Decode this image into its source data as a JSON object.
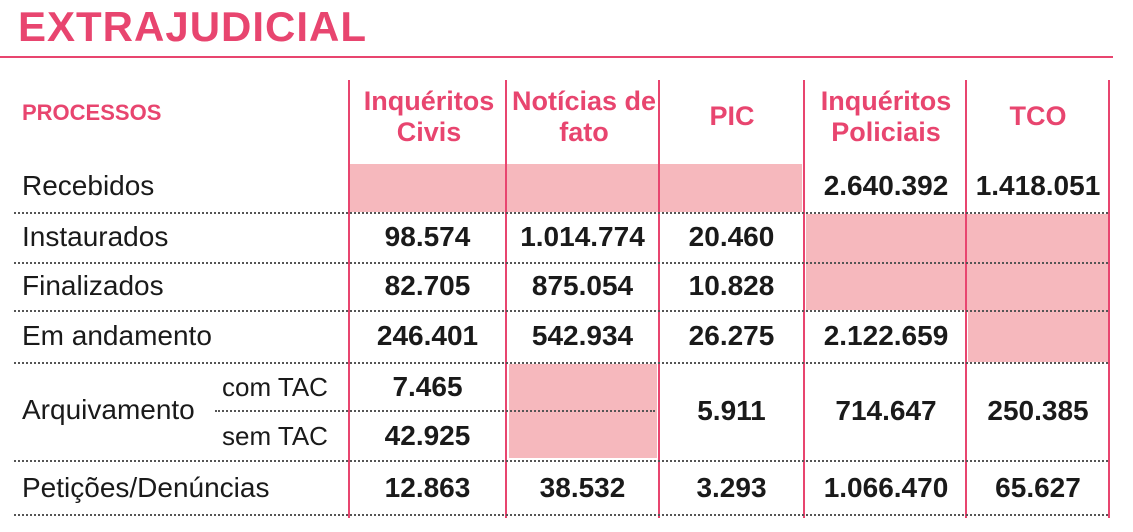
{
  "title": "EXTRAJUDICIAL",
  "header": {
    "processos": "PROCESSOS",
    "columns": [
      "Inquéritos Civis",
      "Notícias de fato",
      "PIC",
      "Inquéritos Policiais",
      "TCO"
    ]
  },
  "rows": {
    "recebidos": {
      "label": "Recebidos",
      "inq_policiais": "2.640.392",
      "tco": "1.418.051"
    },
    "instaurados": {
      "label": "Instaurados",
      "inq_civis": "98.574",
      "noticias": "1.014.774",
      "pic": "20.460"
    },
    "finalizados": {
      "label": "Finalizados",
      "inq_civis": "82.705",
      "noticias": "875.054",
      "pic": "10.828"
    },
    "andamento": {
      "label": "Em andamento",
      "inq_civis": "246.401",
      "noticias": "542.934",
      "pic": "26.275",
      "inq_policiais": "2.122.659"
    },
    "arquivamento": {
      "label": "Arquivamento",
      "com_tac": "com TAC",
      "sem_tac": "sem TAC",
      "inq_civis_com": "7.465",
      "inq_civis_sem": "42.925",
      "pic": "5.911",
      "inq_policiais": "714.647",
      "tco": "250.385"
    },
    "peticoes": {
      "label": "Petições/Denúncias",
      "inq_civis": "12.863",
      "noticias": "38.532",
      "pic": "3.293",
      "inq_policiais": "1.066.470",
      "tco": "65.627"
    }
  }
}
